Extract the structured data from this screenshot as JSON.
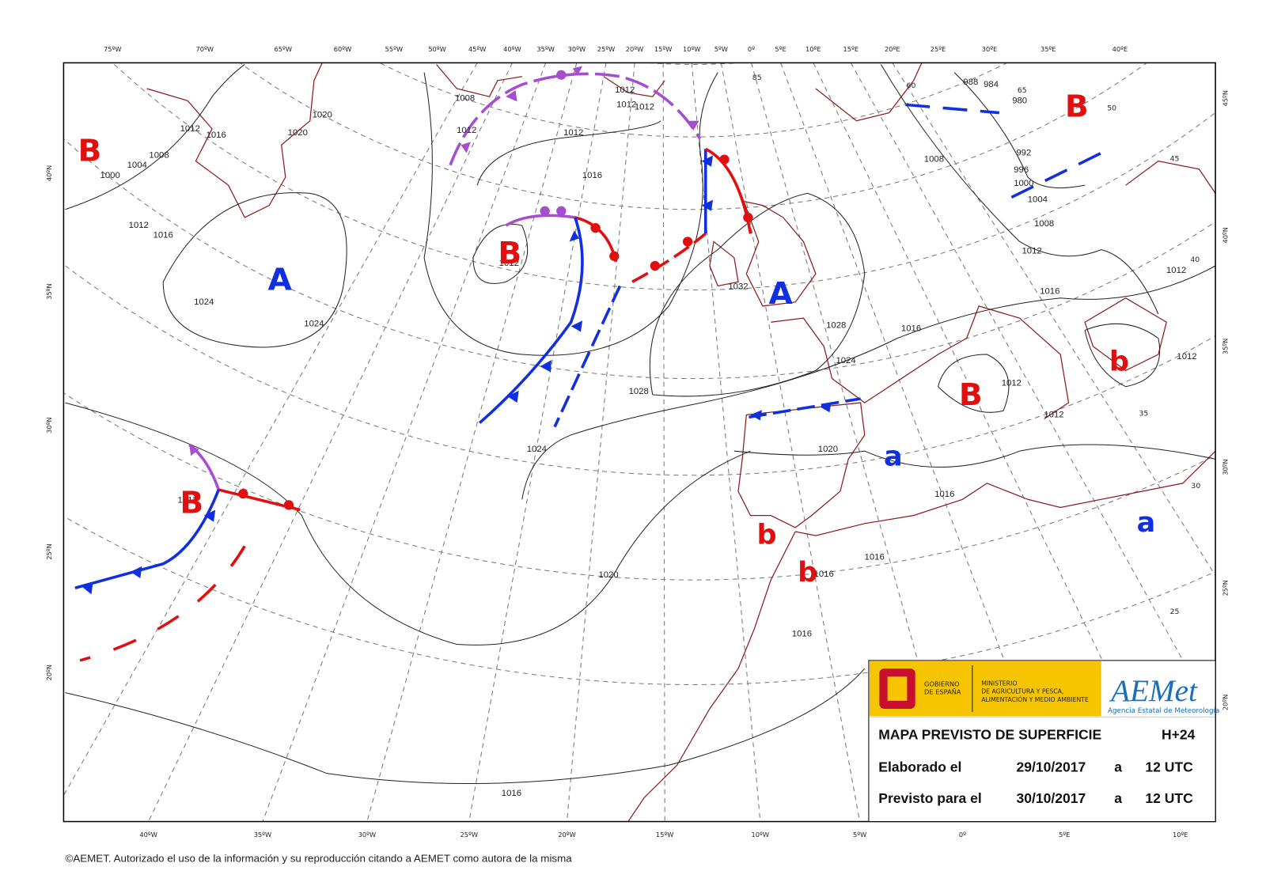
{
  "map": {
    "top_axis_labels": [
      "75ºW",
      "70ºW",
      "65ºW",
      "60ºW",
      "55ºW",
      "50ºW",
      "45ºW",
      "40ºW",
      "35ºW",
      "30ºW",
      "25ºW",
      "20ºW",
      "15ºW",
      "10ºW",
      "5ºW",
      "0º",
      "5ºE",
      "10ºE",
      "15ºE",
      "20ºE",
      "25ºE",
      "30ºE",
      "35ºE",
      "40ºE"
    ],
    "bottom_axis_labels": [
      "40ºW",
      "35ºW",
      "30ºW",
      "25ºW",
      "20ºW",
      "15ºW",
      "10ºW",
      "5ºW",
      "0º",
      "5ºE",
      "10ºE"
    ],
    "left_axis_labels": [
      "40ºN",
      "35ºN",
      "30ºN",
      "25ºN",
      "20ºN"
    ],
    "right_axis_labels": [
      "45ºN",
      "40ºN",
      "35ºN",
      "30ºN",
      "25ºN",
      "20ºN"
    ],
    "grid_labels": [
      85,
      60,
      65,
      50,
      45,
      40,
      35,
      30,
      25
    ],
    "pressure_centers": [
      "B",
      "A",
      "B",
      "A",
      "B",
      "b",
      "B",
      "a",
      "a",
      "b",
      "b",
      "B"
    ],
    "isobar_labels": [
      1012,
      1016,
      1020,
      1020,
      1008,
      1004,
      1000,
      1012,
      1016,
      1024,
      1024,
      1008,
      1012,
      1012,
      1016,
      1012,
      1012,
      1012,
      1012,
      1032,
      1028,
      1024,
      1028,
      1016,
      1016,
      1012,
      1008,
      1004,
      1000,
      996,
      992,
      988,
      984,
      980,
      1008,
      1012,
      1012,
      1012,
      1012,
      1020,
      1016,
      1024,
      1020,
      1016,
      1016,
      1016,
      1016,
      1012
    ]
  },
  "info_box": {
    "government": [
      "GOBIERNO",
      "DE ESPAÑA"
    ],
    "ministry": [
      "MINISTERIO",
      "DE AGRICULTURA Y PESCA,",
      "ALIMENTACIÓN Y MEDIO AMBIENTE"
    ],
    "logo": "AEMet",
    "agency": "Agencia Estatal de Meteorología",
    "title": "MAPA PREVISTO DE SUPERFICIE",
    "lead_time": "H+24",
    "rows": [
      [
        "Elaborado el",
        "29/10/2017",
        "a",
        "12 UTC"
      ],
      [
        "Previsto para el",
        "30/10/2017",
        "a",
        "12 UTC"
      ]
    ]
  },
  "copyright": "©AEMET. Autorizado el uso de la información y su reproducción citando a AEMET como autora de la misma"
}
